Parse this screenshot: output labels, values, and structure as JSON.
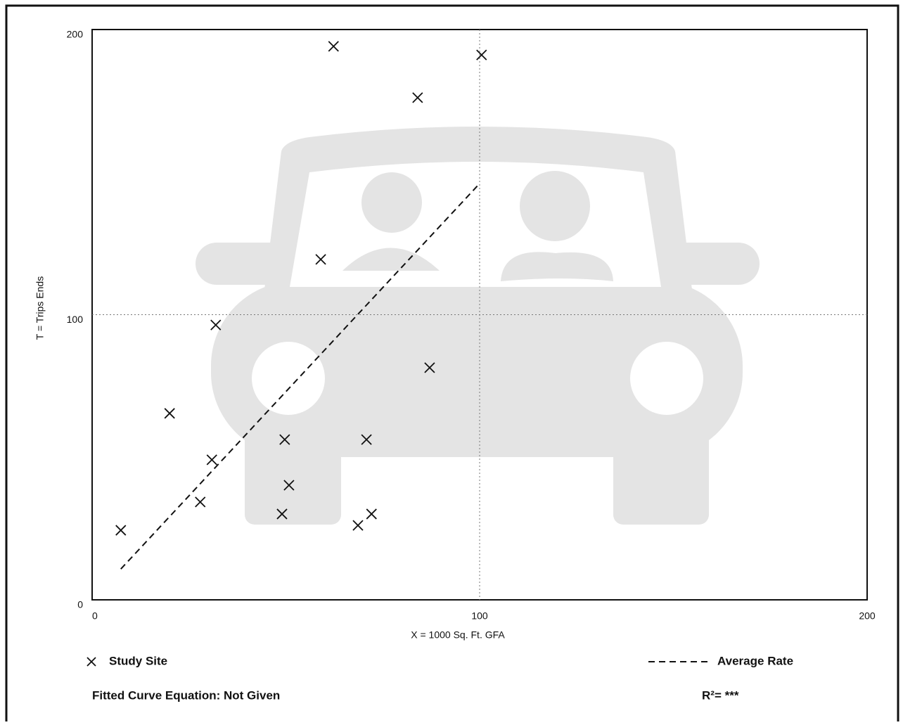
{
  "chart_data": {
    "type": "scatter",
    "xlabel": "X = 1000 Sq. Ft. GFA",
    "ylabel": "T = Trips Ends",
    "xlim": [
      0,
      200
    ],
    "ylim": [
      0,
      200
    ],
    "xticks": [
      0,
      100,
      200
    ],
    "yticks": [
      0,
      100,
      200
    ],
    "grid": "dotted",
    "series": [
      {
        "name": "Study Site",
        "color": "#111111",
        "mark": "cross",
        "x": [
          7.4,
          20.0,
          27.9,
          30.9,
          31.9,
          49.0,
          49.7,
          50.8,
          59.0,
          62.3,
          68.6,
          70.8,
          72.1,
          84.0,
          87.1,
          100.5
        ],
        "values": [
          24.4,
          65.4,
          34.3,
          49.1,
          96.4,
          30.1,
          56.2,
          40.2,
          119.4,
          194.1,
          26.1,
          56.2,
          30.1,
          176.1,
          81.4,
          191.1
        ]
      },
      {
        "name": "Average Rate",
        "color": "#111111",
        "mark": "dashed-line",
        "x": [
          7.4,
          100
        ],
        "values": [
          10.8,
          146
        ]
      }
    ],
    "fitted_curve": "Fitted Curve Equation: Not Given",
    "r_squared": "R²= ***"
  }
}
